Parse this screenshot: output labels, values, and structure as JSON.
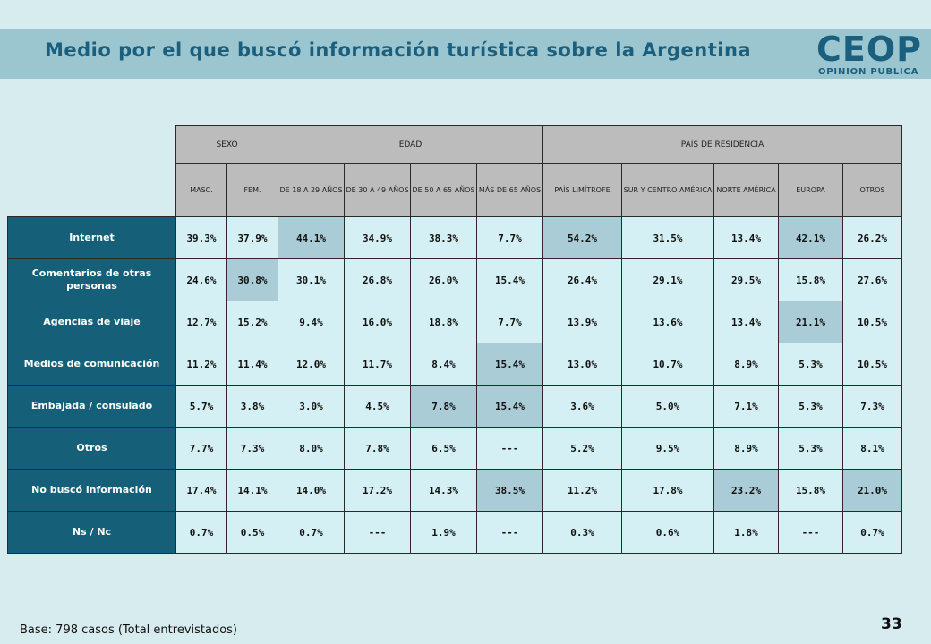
{
  "title": "Medio por el que buscó información turística sobre la Argentina",
  "logo": {
    "main": "CEOP",
    "sub": "OPINION PUBLICA"
  },
  "colors": {
    "header_bg": "#bcbcbc",
    "row_header_bg": "#156078",
    "cell_bg": "#d4f0f4",
    "highlight_bg": "#a9ccd6",
    "title": "#1a5f7d"
  },
  "chart_data": {
    "type": "table",
    "groups": [
      "SEXO",
      "EDAD",
      "PAÍS DE RESIDENCIA"
    ],
    "columns": [
      "MASC.",
      "FEM.",
      "DE 18 A 29 AÑOS",
      "DE 30 A 49 AÑOS",
      "DE 50 A 65 AÑOS",
      "MÁS DE 65 AÑOS",
      "PAÍS LIMÍTROFE",
      "SUR Y CENTRO AMÉRICA",
      "NORTE AMÉRICA",
      "EUROPA",
      "OTROS"
    ],
    "rows": [
      {
        "label": "Internet",
        "values": [
          "39.3%",
          "37.9%",
          "44.1%",
          "34.9%",
          "38.3%",
          "7.7%",
          "54.2%",
          "31.5%",
          "13.4%",
          "42.1%",
          "26.2%"
        ],
        "highlight": [
          2,
          6,
          9
        ]
      },
      {
        "label": "Comentarios de otras personas",
        "values": [
          "24.6%",
          "30.8%",
          "30.1%",
          "26.8%",
          "26.0%",
          "15.4%",
          "26.4%",
          "29.1%",
          "29.5%",
          "15.8%",
          "27.6%"
        ],
        "highlight": [
          1
        ]
      },
      {
        "label": "Agencias de viaje",
        "values": [
          "12.7%",
          "15.2%",
          "9.4%",
          "16.0%",
          "18.8%",
          "7.7%",
          "13.9%",
          "13.6%",
          "13.4%",
          "21.1%",
          "10.5%"
        ],
        "highlight": [
          9
        ]
      },
      {
        "label": "Medios de comunicación",
        "values": [
          "11.2%",
          "11.4%",
          "12.0%",
          "11.7%",
          "8.4%",
          "15.4%",
          "13.0%",
          "10.7%",
          "8.9%",
          "5.3%",
          "10.5%"
        ],
        "highlight": [
          5
        ]
      },
      {
        "label": "Embajada / consulado",
        "values": [
          "5.7%",
          "3.8%",
          "3.0%",
          "4.5%",
          "7.8%",
          "15.4%",
          "3.6%",
          "5.0%",
          "7.1%",
          "5.3%",
          "7.3%"
        ],
        "highlight": [
          4,
          5
        ]
      },
      {
        "label": "Otros",
        "values": [
          "7.7%",
          "7.3%",
          "8.0%",
          "7.8%",
          "6.5%",
          "---",
          "5.2%",
          "9.5%",
          "8.9%",
          "5.3%",
          "8.1%"
        ],
        "highlight": []
      },
      {
        "label": "No buscó información",
        "values": [
          "17.4%",
          "14.1%",
          "14.0%",
          "17.2%",
          "14.3%",
          "38.5%",
          "11.2%",
          "17.8%",
          "23.2%",
          "15.8%",
          "21.0%"
        ],
        "highlight": [
          5,
          8,
          10
        ]
      },
      {
        "label": "Ns / Nc",
        "values": [
          "0.7%",
          "0.5%",
          "0.7%",
          "---",
          "1.9%",
          "---",
          "0.3%",
          "0.6%",
          "1.8%",
          "---",
          "0.7%"
        ],
        "highlight": []
      }
    ]
  },
  "footer": "Base: 798 casos (Total entrevistados)",
  "page_number": "33"
}
